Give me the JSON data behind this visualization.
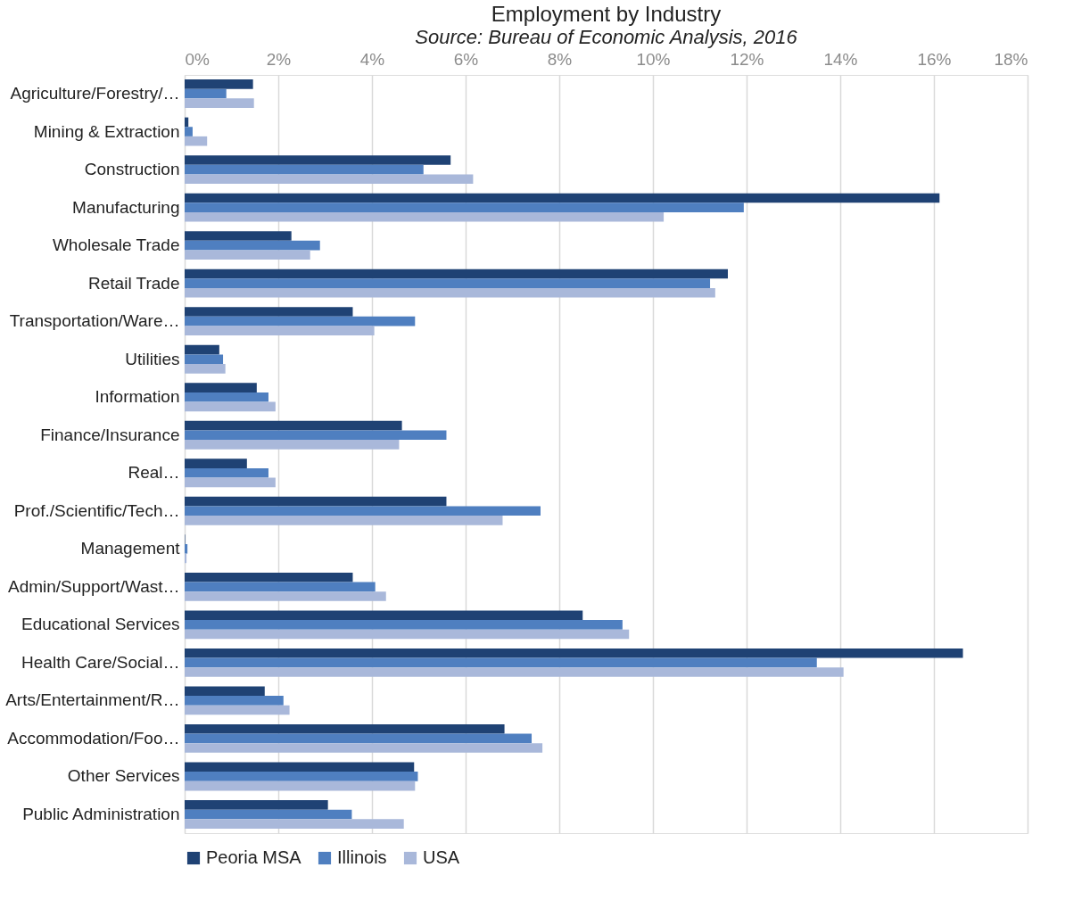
{
  "chart_data": {
    "type": "bar",
    "orientation": "horizontal",
    "title": "Employment by Industry",
    "subtitle": "Source: Bureau of Economic Analysis, 2016",
    "categories": [
      "Agriculture/Forestry/…",
      "Mining & Extraction",
      "Construction",
      "Manufacturing",
      "Wholesale Trade",
      "Retail Trade",
      "Transportation/Ware…",
      "Utilities",
      "Information",
      "Finance/Insurance",
      "Real…",
      "Prof./Scientific/Tech…",
      "Management",
      "Admin/Support/Wast…",
      "Educational Services",
      "Health Care/Social…",
      "Arts/Entertainment/R…",
      "Accommodation/Foo…",
      "Other Services",
      "Public Administration"
    ],
    "series": [
      {
        "name": "Peoria MSA",
        "color": "#1f4274",
        "values": [
          1.46,
          0.08,
          5.68,
          16.12,
          2.28,
          11.6,
          3.59,
          0.74,
          1.54,
          4.64,
          1.33,
          5.59,
          0.01,
          3.59,
          8.5,
          16.62,
          1.71,
          6.83,
          4.9,
          3.06
        ]
      },
      {
        "name": "Illinois",
        "color": "#4f7fc0",
        "values": [
          0.89,
          0.17,
          5.1,
          11.94,
          2.89,
          11.22,
          4.92,
          0.82,
          1.79,
          5.59,
          1.79,
          7.6,
          0.06,
          4.07,
          9.35,
          13.5,
          2.11,
          7.41,
          4.98,
          3.57
        ]
      },
      {
        "name": "USA",
        "color": "#a9b8da",
        "values": [
          1.48,
          0.48,
          6.16,
          10.23,
          2.68,
          11.33,
          4.05,
          0.87,
          1.94,
          4.58,
          1.94,
          6.79,
          0.04,
          4.3,
          9.49,
          14.07,
          2.24,
          7.64,
          4.92,
          4.68
        ]
      }
    ],
    "xlim": [
      0,
      18
    ],
    "xticks": [
      {
        "value": 0,
        "label": "0%"
      },
      {
        "value": 2,
        "label": "2%"
      },
      {
        "value": 4,
        "label": "4%"
      },
      {
        "value": 6,
        "label": "6%"
      },
      {
        "value": 8,
        "label": "8%"
      },
      {
        "value": 10,
        "label": "10%"
      },
      {
        "value": 12,
        "label": "12%"
      },
      {
        "value": 14,
        "label": "14%"
      },
      {
        "value": 16,
        "label": "16%"
      },
      {
        "value": 18,
        "label": "18%"
      }
    ],
    "grid": "x",
    "legend": "bottom"
  }
}
